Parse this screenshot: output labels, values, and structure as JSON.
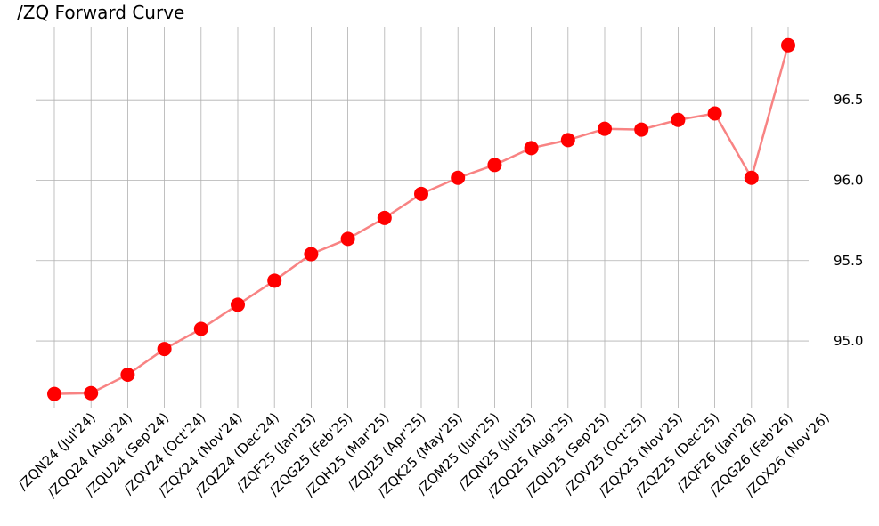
{
  "chart_data": {
    "type": "line",
    "title": "/ZQ Forward Curve",
    "xlabel": "",
    "ylabel": "",
    "categories": [
      "/ZQN24 (Jul'24)",
      "/ZQQ24 (Aug'24)",
      "/ZQU24 (Sep'24)",
      "/ZQV24 (Oct'24)",
      "/ZQX24 (Nov'24)",
      "/ZQZ24 (Dec'24)",
      "/ZQF25 (Jan'25)",
      "/ZQG25 (Feb'25)",
      "/ZQH25 (Mar'25)",
      "/ZQJ25 (Apr'25)",
      "/ZQK25 (May'25)",
      "/ZQM25 (Jun'25)",
      "/ZQN25 (Jul'25)",
      "/ZQQ25 (Aug'25)",
      "/ZQU25 (Sep'25)",
      "/ZQV25 (Oct'25)",
      "/ZQX25 (Nov'25)",
      "/ZQZ25 (Dec'25)",
      "/ZQF26 (Jan'26)",
      "/ZQG26 (Feb'26)",
      "/ZQX26 (Nov'26)"
    ],
    "series": [
      {
        "values": [
          94.67,
          94.675,
          94.79,
          94.95,
          95.075,
          95.225,
          95.375,
          95.54,
          95.635,
          95.765,
          95.915,
          96.015,
          96.095,
          96.2,
          96.25,
          96.32,
          96.315,
          96.375,
          96.415,
          96.015,
          96.84
        ]
      }
    ],
    "yticks": [
      95.0,
      95.5,
      96.0,
      96.5
    ],
    "ytick_labels": [
      "95.0",
      "95.5",
      "96.0",
      "96.5"
    ],
    "ylim": [
      94.585,
      96.955
    ],
    "y_axis_side": "right",
    "grid": true,
    "colors": {
      "line": "#f88383",
      "marker": "#ff0000",
      "grid": "#b0b0b0"
    }
  }
}
